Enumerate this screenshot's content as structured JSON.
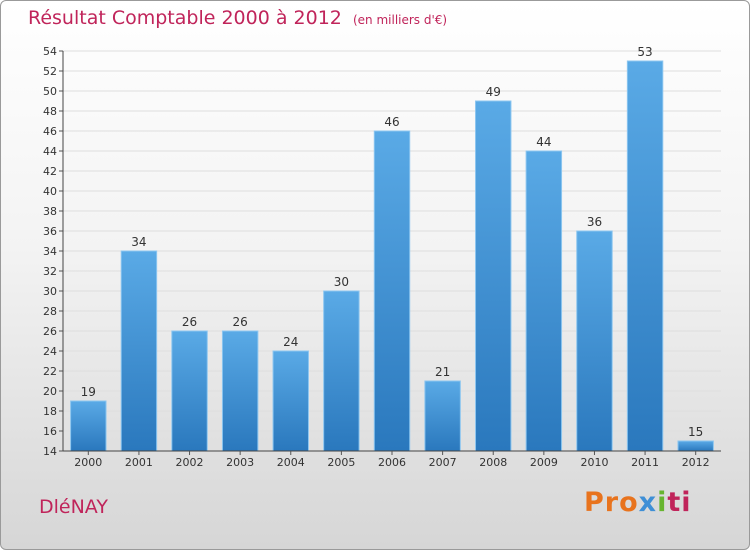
{
  "title": {
    "main": "Résultat Comptable 2000 à 2012",
    "unit": "(en milliers d'€)"
  },
  "commune": "DléNAY",
  "logo": {
    "text": "Proxiti",
    "parts": [
      "Pro",
      "x",
      "i",
      "ti"
    ]
  },
  "colors": {
    "title": "#c0245a",
    "bar_light": "#5aaae6",
    "bar_dark": "#2a78bd"
  },
  "chart_data": {
    "type": "bar",
    "title": "Résultat Comptable 2000 à 2012",
    "xlabel": "",
    "ylabel": "",
    "categories": [
      "2000",
      "2001",
      "2002",
      "2003",
      "2004",
      "2005",
      "2006",
      "2007",
      "2008",
      "2009",
      "2010",
      "2011",
      "2012"
    ],
    "values": [
      19,
      34,
      26,
      26,
      24,
      30,
      46,
      21,
      49,
      44,
      36,
      53,
      15
    ],
    "ylim": [
      14,
      54
    ],
    "yticks": [
      14,
      16,
      18,
      20,
      22,
      24,
      26,
      28,
      30,
      32,
      34,
      36,
      38,
      40,
      42,
      44,
      46,
      48,
      50,
      52,
      54
    ],
    "grid": true
  }
}
